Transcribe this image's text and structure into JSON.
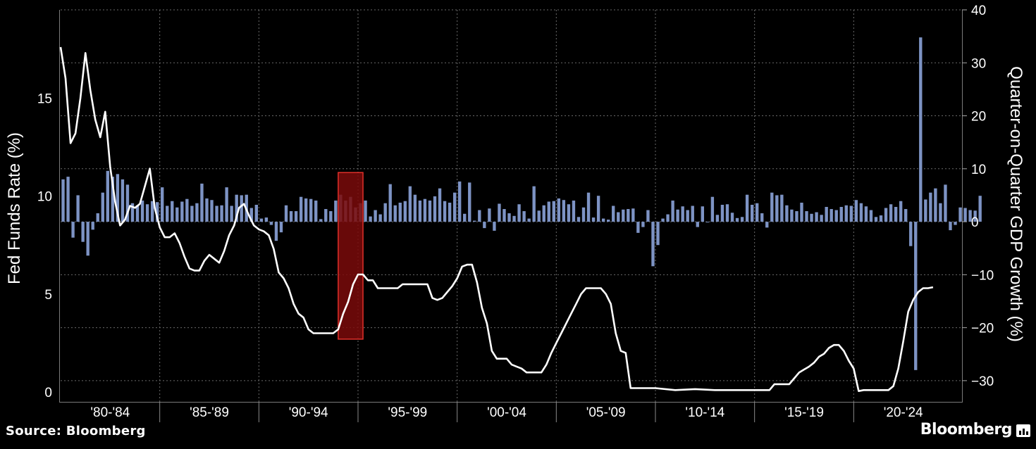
{
  "chart_data": {
    "type": "bar+line",
    "colors": {
      "bars": "#7d93c4",
      "line": "#ffffff",
      "highlight_fill": "#7a0a0a",
      "highlight_stroke": "#e0302a",
      "grid": "#6a6a6a",
      "background": "#000000"
    },
    "left_axis": {
      "label": "Fed Funds Rate (%)",
      "ticks": [
        "0",
        "5",
        "10",
        "15"
      ],
      "tick_values": [
        0,
        5,
        10,
        15
      ],
      "range": [
        -0.5,
        19.5
      ]
    },
    "right_axis": {
      "label": "Quarter-on-Quarter GDP Growth (%)",
      "ticks": [
        "−30",
        "−20",
        "−10",
        "0",
        "10",
        "20",
        "30",
        "40"
      ],
      "tick_values": [
        -30,
        -20,
        -10,
        0,
        10,
        20,
        30,
        40
      ],
      "range": [
        -34,
        40
      ]
    },
    "x_axis": {
      "range": [
        1980,
        2025
      ],
      "groups": [
        "'80-'84",
        "'85-'89",
        "'90-'94",
        "'95-'99",
        "'00-'04",
        "'05-'09",
        "'10-'14",
        "'15-'19",
        "'20-'24"
      ]
    },
    "highlight": {
      "x_start": 1994.0,
      "x_end": 1995.25,
      "y_bottom": 2.7,
      "y_top": 11.2
    },
    "series": [
      {
        "name": "Fed Funds Rate",
        "kind": "line",
        "axis": "left",
        "points": [
          [
            1980.0,
            17.6
          ],
          [
            1980.25,
            16.0
          ],
          [
            1980.5,
            12.7
          ],
          [
            1980.75,
            13.2
          ],
          [
            1981.0,
            15.0
          ],
          [
            1981.25,
            17.3
          ],
          [
            1981.5,
            15.4
          ],
          [
            1981.75,
            13.9
          ],
          [
            1982.0,
            13.0
          ],
          [
            1982.25,
            14.3
          ],
          [
            1982.5,
            11.5
          ],
          [
            1982.75,
            9.7
          ],
          [
            1983.0,
            8.5
          ],
          [
            1983.25,
            8.8
          ],
          [
            1983.5,
            9.5
          ],
          [
            1983.75,
            9.4
          ],
          [
            1984.0,
            9.6
          ],
          [
            1984.25,
            10.5
          ],
          [
            1984.5,
            11.4
          ],
          [
            1984.75,
            9.4
          ],
          [
            1985.0,
            8.4
          ],
          [
            1985.25,
            7.9
          ],
          [
            1985.5,
            7.9
          ],
          [
            1985.75,
            8.1
          ],
          [
            1986.0,
            7.6
          ],
          [
            1986.25,
            6.9
          ],
          [
            1986.5,
            6.3
          ],
          [
            1986.75,
            6.2
          ],
          [
            1987.0,
            6.2
          ],
          [
            1987.25,
            6.7
          ],
          [
            1987.5,
            7.0
          ],
          [
            1987.75,
            6.8
          ],
          [
            1988.0,
            6.6
          ],
          [
            1988.25,
            7.2
          ],
          [
            1988.5,
            8.0
          ],
          [
            1988.75,
            8.5
          ],
          [
            1989.0,
            9.4
          ],
          [
            1989.25,
            9.6
          ],
          [
            1989.5,
            9.0
          ],
          [
            1989.75,
            8.5
          ],
          [
            1990.0,
            8.3
          ],
          [
            1990.25,
            8.2
          ],
          [
            1990.5,
            8.0
          ],
          [
            1990.75,
            7.3
          ],
          [
            1991.0,
            6.1
          ],
          [
            1991.25,
            5.8
          ],
          [
            1991.5,
            5.3
          ],
          [
            1991.75,
            4.5
          ],
          [
            1992.0,
            4.0
          ],
          [
            1992.25,
            3.8
          ],
          [
            1992.5,
            3.2
          ],
          [
            1992.75,
            3.0
          ],
          [
            1993.0,
            3.0
          ],
          [
            1993.25,
            3.0
          ],
          [
            1993.5,
            3.0
          ],
          [
            1993.75,
            3.0
          ],
          [
            1994.0,
            3.2
          ],
          [
            1994.25,
            4.0
          ],
          [
            1994.5,
            4.6
          ],
          [
            1994.75,
            5.5
          ],
          [
            1995.0,
            6.0
          ],
          [
            1995.25,
            6.0
          ],
          [
            1995.5,
            5.7
          ],
          [
            1995.75,
            5.7
          ],
          [
            1996.0,
            5.3
          ],
          [
            1996.25,
            5.3
          ],
          [
            1996.5,
            5.3
          ],
          [
            1996.75,
            5.3
          ],
          [
            1997.0,
            5.3
          ],
          [
            1997.25,
            5.5
          ],
          [
            1997.5,
            5.5
          ],
          [
            1997.75,
            5.5
          ],
          [
            1998.0,
            5.5
          ],
          [
            1998.25,
            5.5
          ],
          [
            1998.5,
            5.5
          ],
          [
            1998.75,
            4.8
          ],
          [
            1999.0,
            4.7
          ],
          [
            1999.25,
            4.8
          ],
          [
            1999.5,
            5.1
          ],
          [
            1999.75,
            5.4
          ],
          [
            2000.0,
            5.8
          ],
          [
            2000.25,
            6.4
          ],
          [
            2000.5,
            6.5
          ],
          [
            2000.75,
            6.5
          ],
          [
            2001.0,
            5.6
          ],
          [
            2001.25,
            4.3
          ],
          [
            2001.5,
            3.5
          ],
          [
            2001.75,
            2.1
          ],
          [
            2002.0,
            1.7
          ],
          [
            2002.25,
            1.7
          ],
          [
            2002.5,
            1.7
          ],
          [
            2002.75,
            1.4
          ],
          [
            2003.0,
            1.3
          ],
          [
            2003.25,
            1.2
          ],
          [
            2003.5,
            1.0
          ],
          [
            2003.75,
            1.0
          ],
          [
            2004.0,
            1.0
          ],
          [
            2004.25,
            1.0
          ],
          [
            2004.5,
            1.4
          ],
          [
            2004.75,
            2.0
          ],
          [
            2005.0,
            2.5
          ],
          [
            2005.25,
            3.0
          ],
          [
            2005.5,
            3.5
          ],
          [
            2005.75,
            4.0
          ],
          [
            2006.0,
            4.5
          ],
          [
            2006.25,
            5.0
          ],
          [
            2006.5,
            5.3
          ],
          [
            2006.75,
            5.3
          ],
          [
            2007.0,
            5.3
          ],
          [
            2007.25,
            5.3
          ],
          [
            2007.5,
            5.0
          ],
          [
            2007.75,
            4.5
          ],
          [
            2008.0,
            3.0
          ],
          [
            2008.25,
            2.1
          ],
          [
            2008.5,
            2.0
          ],
          [
            2008.75,
            0.2
          ],
          [
            2009.0,
            0.2
          ],
          [
            2009.25,
            0.2
          ],
          [
            2009.5,
            0.2
          ],
          [
            2009.75,
            0.2
          ],
          [
            2010.0,
            0.2
          ],
          [
            2011.0,
            0.1
          ],
          [
            2012.0,
            0.15
          ],
          [
            2013.0,
            0.1
          ],
          [
            2014.0,
            0.1
          ],
          [
            2015.0,
            0.1
          ],
          [
            2015.75,
            0.1
          ],
          [
            2016.0,
            0.4
          ],
          [
            2016.5,
            0.4
          ],
          [
            2016.75,
            0.4
          ],
          [
            2017.0,
            0.7
          ],
          [
            2017.25,
            1.0
          ],
          [
            2017.5,
            1.15
          ],
          [
            2017.75,
            1.3
          ],
          [
            2018.0,
            1.5
          ],
          [
            2018.25,
            1.8
          ],
          [
            2018.5,
            1.95
          ],
          [
            2018.75,
            2.25
          ],
          [
            2019.0,
            2.4
          ],
          [
            2019.25,
            2.4
          ],
          [
            2019.5,
            2.1
          ],
          [
            2019.75,
            1.6
          ],
          [
            2020.0,
            1.2
          ],
          [
            2020.25,
            0.05
          ],
          [
            2020.5,
            0.1
          ],
          [
            2020.75,
            0.1
          ],
          [
            2021.0,
            0.1
          ],
          [
            2021.25,
            0.1
          ],
          [
            2021.5,
            0.1
          ],
          [
            2021.75,
            0.1
          ],
          [
            2022.0,
            0.3
          ],
          [
            2022.25,
            1.2
          ],
          [
            2022.5,
            2.6
          ],
          [
            2022.75,
            4.1
          ],
          [
            2023.0,
            4.7
          ],
          [
            2023.25,
            5.1
          ],
          [
            2023.5,
            5.3
          ],
          [
            2023.75,
            5.3
          ],
          [
            2024.0,
            5.35
          ]
        ]
      },
      {
        "name": "Quarter-on-Quarter GDP Growth",
        "kind": "bar",
        "axis": "right",
        "start": 1980.0,
        "step": 0.25,
        "values": [
          8.0,
          8.5,
          -3.0,
          5.0,
          -3.8,
          -6.4,
          -1.5,
          1.6,
          5.5,
          9.6,
          8.5,
          9.0,
          8.0,
          7.0,
          3.5,
          3.1,
          4.0,
          3.3,
          3.9,
          3.7,
          6.5,
          3.0,
          3.9,
          2.7,
          3.8,
          4.3,
          3.0,
          3.5,
          7.2,
          4.4,
          4.1,
          3.0,
          3.1,
          6.5,
          3.0,
          5.1,
          5.0,
          5.1,
          2.6,
          3.2,
          0.6,
          0.8,
          -0.6,
          -3.6,
          -2.0,
          3.1,
          2.0,
          2.0,
          4.7,
          4.4,
          4.3,
          4.0,
          0.5,
          2.4,
          2.0,
          4.0,
          5.1,
          4.0,
          4.7,
          2.7,
          3.5,
          4.0,
          1.0,
          2.2,
          1.4,
          3.5,
          7.1,
          3.1,
          3.6,
          3.9,
          6.7,
          5.1,
          4.0,
          4.3,
          4.0,
          4.8,
          6.3,
          3.9,
          3.6,
          5.5,
          7.6,
          1.5,
          7.4,
          0.2,
          2.2,
          -1.2,
          2.5,
          -1.7,
          3.4,
          2.4,
          1.6,
          1.1,
          3.3,
          2.0,
          0.6,
          6.7,
          2.1,
          3.1,
          3.8,
          3.9,
          4.4,
          4.1,
          3.3,
          4.0,
          0.9,
          2.7,
          5.5,
          0.8,
          4.9,
          0.6,
          0.4,
          3.0,
          1.8,
          2.3,
          2.4,
          2.5,
          -2.1,
          -1.0,
          2.2,
          -8.4,
          -4.4,
          0.6,
          1.4,
          4.0,
          2.3,
          2.9,
          2.2,
          3.0,
          -1.0,
          2.9,
          -0.1,
          4.7,
          1.3,
          3.2,
          3.3,
          1.7,
          0.7,
          0.9,
          5.1,
          3.2,
          3.5,
          1.6,
          -1.1,
          5.5,
          5.0,
          5.1,
          3.1,
          2.3,
          2.0,
          3.6,
          2.0,
          1.5,
          1.8,
          1.3,
          2.8,
          2.4,
          2.2,
          2.8,
          3.1,
          3.0,
          4.1,
          3.5,
          2.9,
          2.2,
          0.9,
          1.2,
          2.6,
          3.3,
          2.8,
          3.9,
          2.4,
          -4.6,
          -28.0,
          34.8,
          4.2,
          5.5,
          6.3,
          3.5,
          7.0,
          -1.6,
          -0.6,
          2.7,
          2.6,
          2.2,
          2.1,
          4.9
        ]
      }
    ]
  },
  "footer": {
    "source": "Source: Bloomberg",
    "brand": "Bloomberg"
  }
}
